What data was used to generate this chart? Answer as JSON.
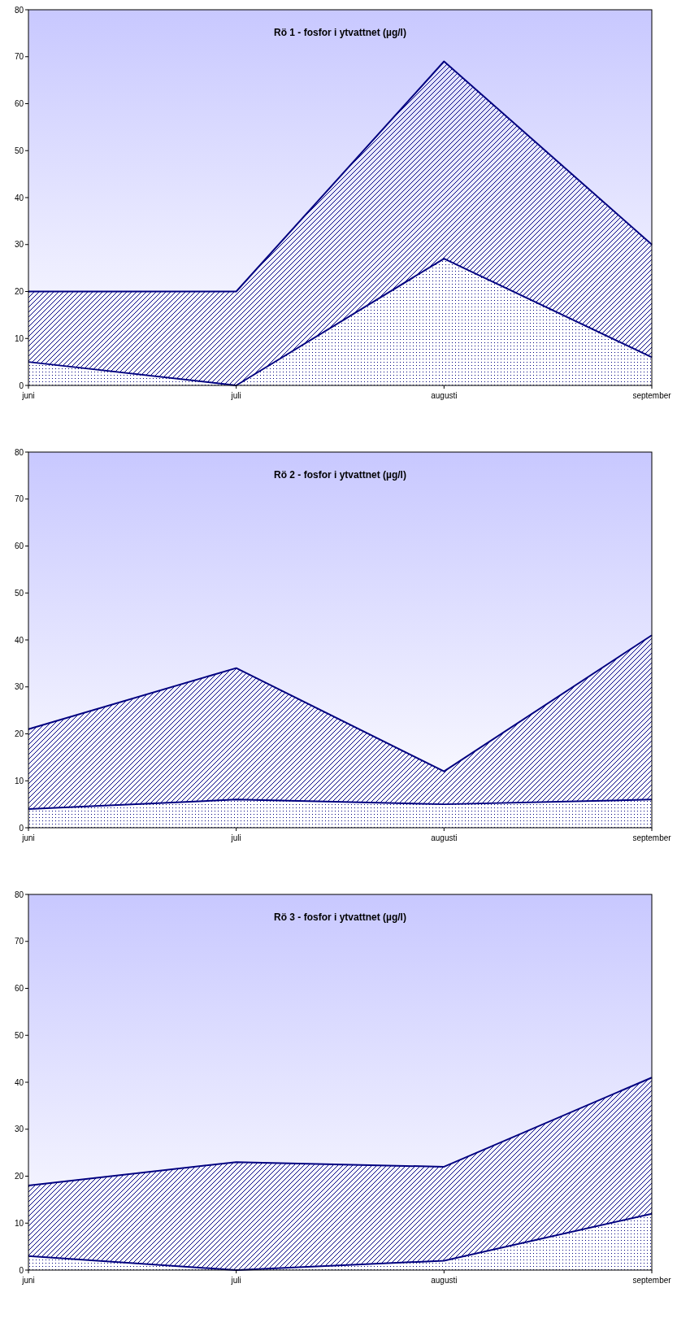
{
  "chart_data": [
    {
      "type": "area",
      "title": "Rö 1 - fosfor i ytvattnet (µg/l)",
      "categories": [
        "juni",
        "juli",
        "augusti",
        "september"
      ],
      "series": [
        {
          "color": "#000080",
          "values": [
            20,
            20,
            69,
            30
          ]
        },
        {
          "color": "#000080",
          "values": [
            5,
            0,
            27,
            6
          ]
        }
      ],
      "ylim": [
        0,
        80
      ],
      "yticks": [
        0,
        10,
        20,
        30,
        40,
        50,
        60,
        70,
        80
      ]
    },
    {
      "type": "area",
      "title": "Rö 2 - fosfor i ytvattnet (µg/l)",
      "categories": [
        "juni",
        "juli",
        "augusti",
        "september"
      ],
      "series": [
        {
          "color": "#000080",
          "values": [
            21,
            34,
            12,
            41
          ]
        },
        {
          "color": "#000080",
          "values": [
            4,
            6,
            5,
            6
          ]
        }
      ],
      "ylim": [
        0,
        80
      ],
      "yticks": [
        0,
        10,
        20,
        30,
        40,
        50,
        60,
        70,
        80
      ]
    },
    {
      "type": "area",
      "title": "Rö 3 - fosfor i ytvattnet (µg/l)",
      "categories": [
        "juni",
        "juli",
        "augusti",
        "september"
      ],
      "series": [
        {
          "color": "#000080",
          "values": [
            18,
            23,
            22,
            41
          ]
        },
        {
          "color": "#000080",
          "values": [
            3,
            0,
            2,
            12
          ]
        }
      ],
      "ylim": [
        0,
        80
      ],
      "yticks": [
        0,
        10,
        20,
        30,
        40,
        50,
        60,
        70,
        80
      ]
    }
  ]
}
